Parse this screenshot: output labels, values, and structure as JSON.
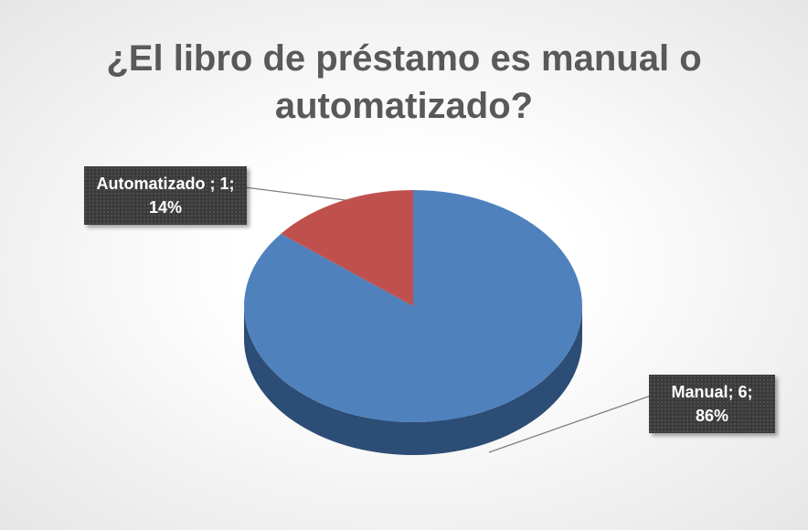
{
  "chart_data": {
    "type": "pie",
    "title": "¿El libro de préstamo es manual o automatizado?",
    "values": [
      6,
      1
    ],
    "value_labels": [
      "Manual; 6; 86%",
      "Automatizado ; 1;  14%"
    ],
    "colors": [
      "#4f81bd",
      "#c0504d"
    ],
    "side_colors": [
      "#2c4d75",
      "#7f2f2d"
    ]
  }
}
